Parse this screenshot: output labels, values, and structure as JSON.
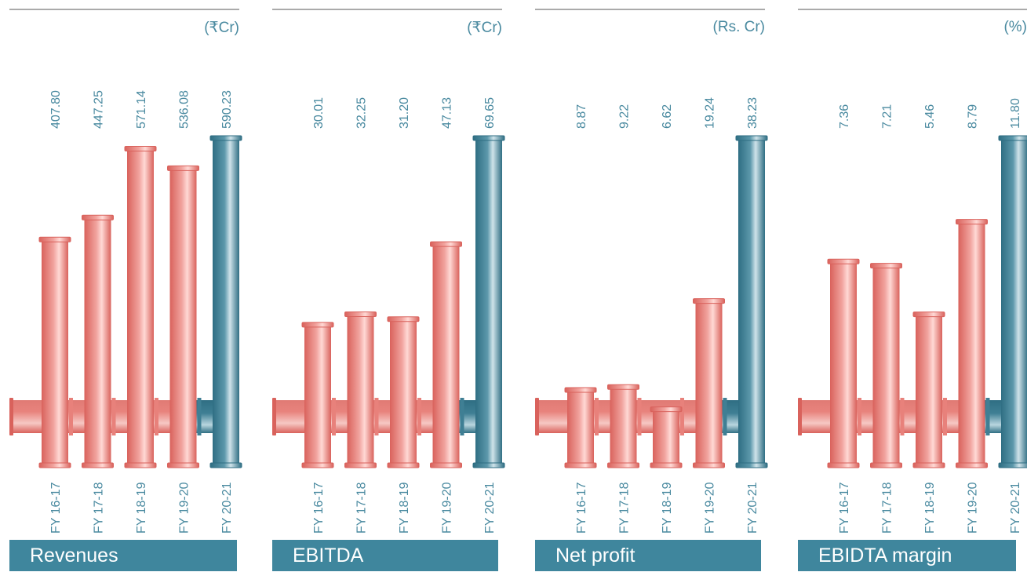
{
  "colors": {
    "pink": "#e8817b",
    "teal": "#3f7f94",
    "label": "#4a8aa0",
    "title_bg": "#3f869d"
  },
  "chart_data": [
    {
      "type": "bar",
      "title": "Revenues",
      "unit": "(₹Cr)",
      "categories": [
        "FY 16-17",
        "FY 17-18",
        "FY 18-19",
        "FY 19-20",
        "FY 20-21"
      ],
      "values": [
        407.8,
        447.25,
        571.14,
        536.08,
        590.23
      ],
      "value_labels": [
        "407.80",
        "447.25",
        "571.14",
        "536.08",
        "590.23"
      ]
    },
    {
      "type": "bar",
      "title": "EBITDA",
      "unit": "(₹Cr)",
      "categories": [
        "FY 16-17",
        "FY 17-18",
        "FY 18-19",
        "FY 19-20",
        "FY 20-21"
      ],
      "values": [
        30.01,
        32.25,
        31.2,
        47.13,
        69.65
      ],
      "value_labels": [
        "30.01",
        "32.25",
        "31.20",
        "47.13",
        "69.65"
      ]
    },
    {
      "type": "bar",
      "title": "Net profit",
      "unit": "(Rs. Cr)",
      "categories": [
        "FY 16-17",
        "FY 17-18",
        "FY 18-19",
        "FY 19-20",
        "FY 20-21"
      ],
      "values": [
        8.87,
        9.22,
        6.62,
        19.24,
        38.23
      ],
      "value_labels": [
        "8.87",
        "9.22",
        "6.62",
        "19.24",
        "38.23"
      ]
    },
    {
      "type": "bar",
      "title": "EBIDTA margin",
      "unit": "(%)",
      "categories": [
        "FY 16-17",
        "FY 17-18",
        "FY 18-19",
        "FY 19-20",
        "FY 20-21"
      ],
      "values": [
        7.36,
        7.21,
        5.46,
        8.79,
        11.8
      ],
      "value_labels": [
        "7.36",
        "7.21",
        "5.46",
        "8.79",
        "11.80"
      ]
    }
  ]
}
